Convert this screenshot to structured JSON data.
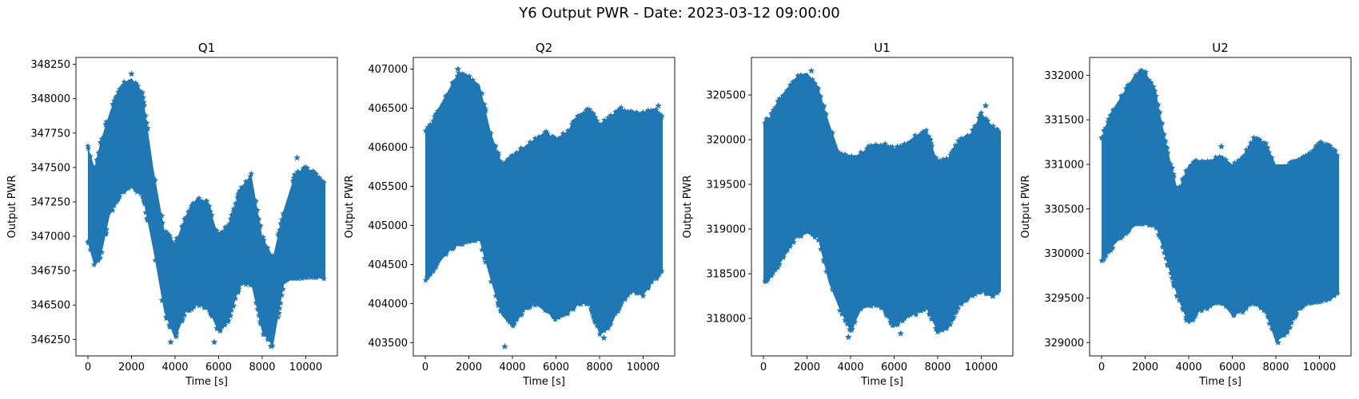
{
  "figure": {
    "title": "Y6 Output PWR - Date: 2023-03-12 09:00:00"
  },
  "style": {
    "series_color": "#1f77b4",
    "marker": "star"
  },
  "chart_data": [
    {
      "type": "scatter",
      "title": "Q1",
      "xlabel": "Time [s]",
      "ylabel": "Output PWR",
      "xlim": [
        -550,
        11450
      ],
      "ylim": [
        346130,
        348300
      ],
      "xticks": [
        0,
        2000,
        4000,
        6000,
        8000,
        10000
      ],
      "xtick_labels": [
        "0",
        "2000",
        "4000",
        "6000",
        "8000",
        "10000"
      ],
      "yticks": [
        346250,
        346500,
        346750,
        347000,
        347250,
        347500,
        347750,
        348000,
        348250
      ],
      "ytick_labels": [
        "346250",
        "346500",
        "346750",
        "347000",
        "347250",
        "347500",
        "347750",
        "348000",
        "348250"
      ],
      "grid": false,
      "series": [
        {
          "x": [
            0,
            300,
            600,
            1000,
            1500,
            2000,
            2500,
            3000,
            3500,
            4000,
            4500,
            5000,
            5500,
            6000,
            6500,
            7000,
            7500,
            8000,
            8500,
            9000,
            9500,
            10000,
            10500,
            10900
          ],
          "y_upper": [
            347650,
            347500,
            347700,
            347900,
            348100,
            348150,
            348050,
            347500,
            347050,
            346950,
            347150,
            347280,
            347250,
            347000,
            347100,
            347350,
            347450,
            347000,
            346850,
            347200,
            347450,
            347500,
            347450,
            347400
          ],
          "y_lower": [
            346950,
            346780,
            346850,
            347150,
            347300,
            347350,
            347300,
            346900,
            346450,
            346250,
            346450,
            346500,
            346480,
            346300,
            346400,
            346650,
            346650,
            346300,
            346200,
            346650,
            346700,
            346700,
            346700,
            346680
          ],
          "outliers": [
            [
              2000,
              348180
            ],
            [
              5800,
              346230
            ],
            [
              9600,
              347570
            ],
            [
              3800,
              346230
            ],
            [
              8400,
              346200
            ]
          ]
        }
      ]
    },
    {
      "type": "scatter",
      "title": "Q2",
      "xlabel": "Time [s]",
      "ylabel": "Output PWR",
      "xlim": [
        -550,
        11450
      ],
      "ylim": [
        403330,
        407150
      ],
      "xticks": [
        0,
        2000,
        4000,
        6000,
        8000,
        10000
      ],
      "xtick_labels": [
        "0",
        "2000",
        "4000",
        "6000",
        "8000",
        "10000"
      ],
      "yticks": [
        403500,
        404000,
        404500,
        405000,
        405500,
        406000,
        406500,
        407000
      ],
      "ytick_labels": [
        "403500",
        "404000",
        "404500",
        "405000",
        "405500",
        "406000",
        "406500",
        "407000"
      ],
      "grid": false,
      "series": [
        {
          "x": [
            0,
            300,
            600,
            1000,
            1500,
            2000,
            2500,
            3000,
            3500,
            4000,
            4500,
            5000,
            5500,
            6000,
            6500,
            7000,
            7500,
            8000,
            8500,
            9000,
            9500,
            10000,
            10500,
            10900
          ],
          "y_upper": [
            406200,
            406300,
            406500,
            406700,
            406950,
            406900,
            406800,
            406200,
            405800,
            405900,
            406000,
            406100,
            406200,
            406100,
            406200,
            406400,
            406500,
            406300,
            406400,
            406500,
            406450,
            406450,
            406500,
            406400
          ],
          "y_lower": [
            404300,
            404400,
            404500,
            404650,
            404750,
            404800,
            404800,
            404300,
            403850,
            403700,
            403900,
            404000,
            403900,
            403800,
            403850,
            404000,
            404000,
            403600,
            403700,
            404000,
            404150,
            404100,
            404300,
            404400
          ],
          "outliers": [
            [
              1500,
              407000
            ],
            [
              3650,
              403450
            ],
            [
              8200,
              403560
            ],
            [
              10700,
              406530
            ],
            [
              7800,
              403800
            ]
          ]
        }
      ]
    },
    {
      "type": "scatter",
      "title": "U1",
      "xlabel": "Time [s]",
      "ylabel": "Output PWR",
      "xlim": [
        -550,
        11450
      ],
      "ylim": [
        317580,
        320920
      ],
      "xticks": [
        0,
        2000,
        4000,
        6000,
        8000,
        10000
      ],
      "xtick_labels": [
        "0",
        "2000",
        "4000",
        "6000",
        "8000",
        "10000"
      ],
      "yticks": [
        318000,
        318500,
        319000,
        319500,
        320000,
        320500
      ],
      "ytick_labels": [
        "318000",
        "318500",
        "319000",
        "319500",
        "320000",
        "320500"
      ],
      "grid": false,
      "series": [
        {
          "x": [
            0,
            300,
            600,
            1000,
            1500,
            2000,
            2500,
            3000,
            3500,
            4000,
            4500,
            5000,
            5500,
            6000,
            6500,
            7000,
            7500,
            8000,
            8500,
            9000,
            9500,
            10000,
            10500,
            10900
          ],
          "y_upper": [
            320200,
            320250,
            320400,
            320550,
            320700,
            320750,
            320600,
            320200,
            319850,
            319800,
            319850,
            319950,
            319950,
            319900,
            319950,
            320050,
            320100,
            319750,
            319800,
            320000,
            320050,
            320300,
            320150,
            320100
          ],
          "y_lower": [
            318400,
            318450,
            318550,
            318700,
            318900,
            318950,
            318900,
            318400,
            318100,
            317850,
            318100,
            318150,
            318100,
            317900,
            318000,
            318050,
            318100,
            317850,
            317900,
            318150,
            318250,
            318300,
            318250,
            318300
          ],
          "outliers": [
            [
              2200,
              320770
            ],
            [
              10200,
              320380
            ],
            [
              3900,
              317790
            ],
            [
              6300,
              317830
            ],
            [
              8000,
              317850
            ]
          ]
        }
      ]
    },
    {
      "type": "scatter",
      "title": "U2",
      "xlabel": "Time [s]",
      "ylabel": "Output PWR",
      "xlim": [
        -550,
        11450
      ],
      "ylim": [
        328850,
        332200
      ],
      "xticks": [
        0,
        2000,
        4000,
        6000,
        8000,
        10000
      ],
      "xtick_labels": [
        "0",
        "2000",
        "4000",
        "6000",
        "8000",
        "10000"
      ],
      "yticks": [
        329000,
        329500,
        330000,
        330500,
        331000,
        331500,
        332000
      ],
      "ytick_labels": [
        "329000",
        "329500",
        "330000",
        "330500",
        "331000",
        "331500",
        "332000"
      ],
      "grid": false,
      "series": [
        {
          "x": [
            0,
            300,
            600,
            1000,
            1500,
            2000,
            2500,
            3000,
            3500,
            4000,
            4500,
            5000,
            5500,
            6000,
            6500,
            7000,
            7500,
            8000,
            8500,
            9000,
            9500,
            10000,
            10500,
            10900
          ],
          "y_upper": [
            331300,
            331500,
            331650,
            331800,
            332000,
            332050,
            331800,
            331200,
            330700,
            331000,
            331050,
            331050,
            331100,
            331000,
            331100,
            331300,
            331250,
            331000,
            331000,
            331050,
            331100,
            331250,
            331200,
            331100
          ],
          "y_lower": [
            329900,
            330000,
            330100,
            330200,
            330300,
            330350,
            330300,
            329900,
            329500,
            329200,
            329350,
            329400,
            329450,
            329300,
            329350,
            329450,
            329350,
            329000,
            329100,
            329350,
            329450,
            329450,
            329500,
            329550
          ],
          "outliers": [
            [
              1800,
              332050
            ],
            [
              8100,
              329000
            ],
            [
              5500,
              331200
            ],
            [
              3900,
              329250
            ],
            [
              10700,
              329550
            ]
          ]
        }
      ]
    }
  ]
}
